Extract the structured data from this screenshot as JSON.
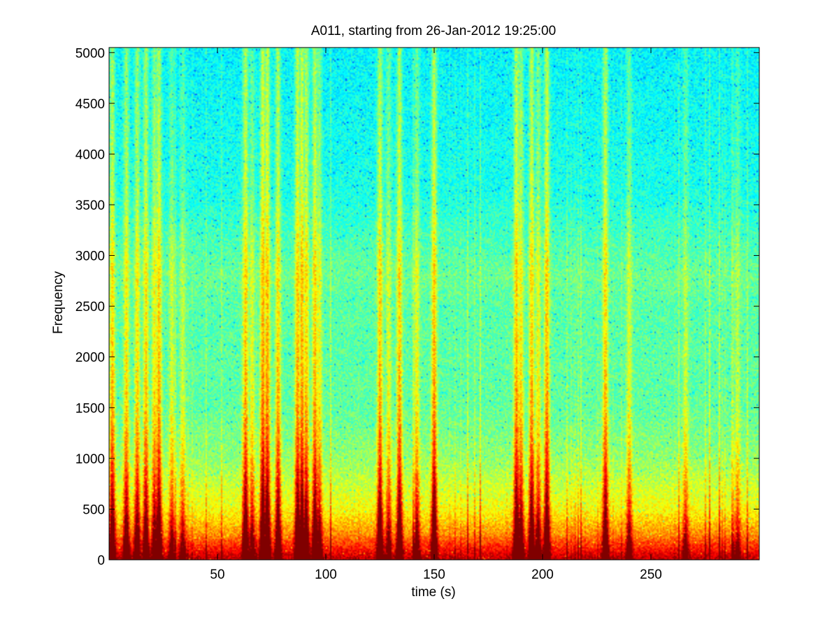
{
  "chart_data": {
    "type": "heatmap",
    "title": "A011, starting from 26-Jan-2012 19:25:00",
    "xlabel": "time (s)",
    "ylabel": "Frequency",
    "xlim": [
      0,
      300
    ],
    "ylim": [
      0,
      5050
    ],
    "xticks": [
      50,
      100,
      150,
      200,
      250
    ],
    "yticks": [
      0,
      500,
      1000,
      1500,
      2000,
      2500,
      3000,
      3500,
      4000,
      4500,
      5000
    ],
    "colormap": "jet",
    "grid": false,
    "background_band_level": [
      {
        "freq": 0,
        "level": 0.95
      },
      {
        "freq": 80,
        "level": 0.88
      },
      {
        "freq": 250,
        "level": 0.74
      },
      {
        "freq": 500,
        "level": 0.62
      },
      {
        "freq": 1000,
        "level": 0.52
      },
      {
        "freq": 1500,
        "level": 0.47
      },
      {
        "freq": 2500,
        "level": 0.46
      },
      {
        "freq": 2800,
        "level": 0.48
      },
      {
        "freq": 3200,
        "level": 0.44
      },
      {
        "freq": 3600,
        "level": 0.4
      },
      {
        "freq": 5050,
        "level": 0.37
      }
    ],
    "transient_events": [
      {
        "time": 1.5,
        "intensity": 0.8
      },
      {
        "time": 8,
        "intensity": 0.7
      },
      {
        "time": 13,
        "intensity": 0.7
      },
      {
        "time": 17,
        "intensity": 0.75
      },
      {
        "time": 21,
        "intensity": 0.65
      },
      {
        "time": 23,
        "intensity": 0.85
      },
      {
        "time": 29,
        "intensity": 0.45
      },
      {
        "time": 34,
        "intensity": 0.4
      },
      {
        "time": 63,
        "intensity": 0.85
      },
      {
        "time": 66,
        "intensity": 0.5
      },
      {
        "time": 71,
        "intensity": 1.0
      },
      {
        "time": 73,
        "intensity": 0.95
      },
      {
        "time": 78,
        "intensity": 0.8
      },
      {
        "time": 87,
        "intensity": 0.9
      },
      {
        "time": 89,
        "intensity": 0.95
      },
      {
        "time": 91,
        "intensity": 0.8
      },
      {
        "time": 95,
        "intensity": 0.85
      },
      {
        "time": 97,
        "intensity": 0.6
      },
      {
        "time": 125,
        "intensity": 0.85
      },
      {
        "time": 129,
        "intensity": 0.5
      },
      {
        "time": 134,
        "intensity": 0.85
      },
      {
        "time": 142,
        "intensity": 0.55
      },
      {
        "time": 150,
        "intensity": 0.9
      },
      {
        "time": 188,
        "intensity": 0.9
      },
      {
        "time": 190,
        "intensity": 0.7
      },
      {
        "time": 195,
        "intensity": 0.85
      },
      {
        "time": 198,
        "intensity": 0.6
      },
      {
        "time": 202,
        "intensity": 0.9
      },
      {
        "time": 229,
        "intensity": 0.8
      },
      {
        "time": 240,
        "intensity": 0.5
      },
      {
        "time": 266,
        "intensity": 0.4
      },
      {
        "time": 290,
        "intensity": 0.35
      }
    ]
  }
}
